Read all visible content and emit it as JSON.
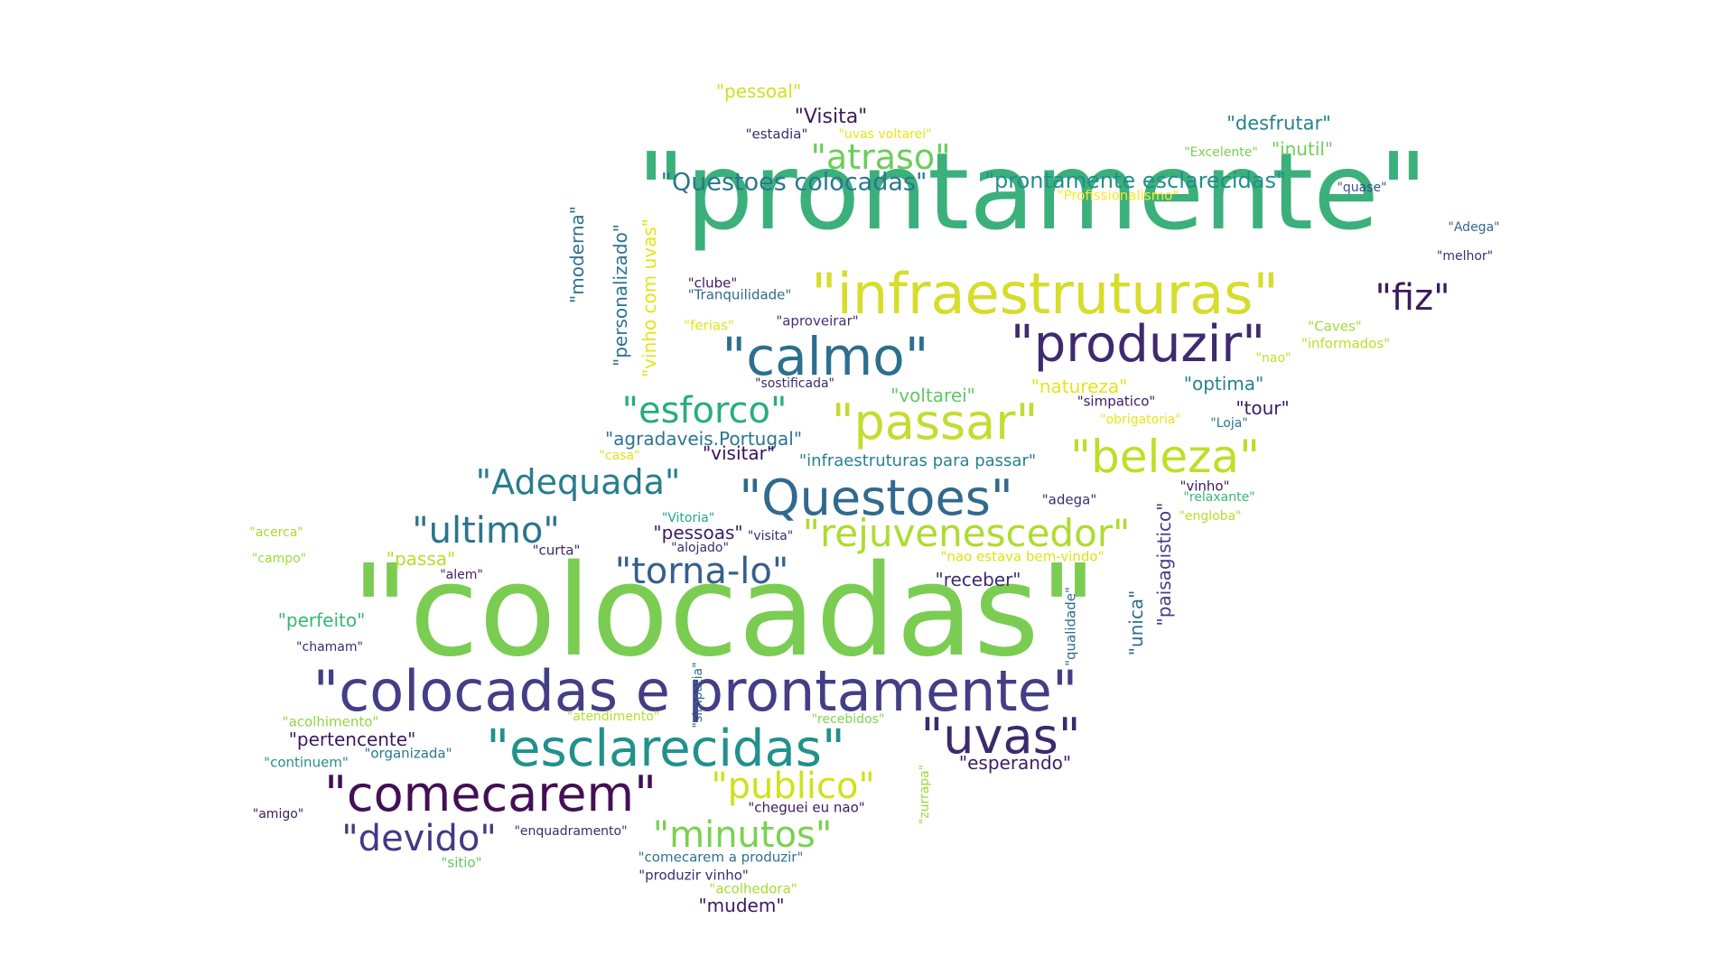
{
  "words": [
    {
      "text": "\"prontamente\"",
      "color": "#3bb07a"
    },
    {
      "text": "\"colocadas\"",
      "color": "#7acd52"
    },
    {
      "text": "\"colocadas e prontamente\"",
      "color": "#433e85"
    },
    {
      "text": "\"infraestruturas\"",
      "color": "#d6dd2b"
    },
    {
      "text": "\"produzir\"",
      "color": "#3f2a70"
    },
    {
      "text": "\"calmo\"",
      "color": "#2d6f8e"
    },
    {
      "text": "\"Questoes\"",
      "color": "#306a8e"
    },
    {
      "text": "\"passar\"",
      "color": "#c4dc30"
    },
    {
      "text": "\"beleza\"",
      "color": "#bddf26"
    },
    {
      "text": "\"esclarecidas\"",
      "color": "#21918c"
    },
    {
      "text": "\"comecarem\"",
      "color": "#440f54"
    },
    {
      "text": "\"uvas\"",
      "color": "#3b2a6d"
    },
    {
      "text": "\"rejuvenescedor\"",
      "color": "#addc30"
    },
    {
      "text": "\"torna-lo\"",
      "color": "#355f8d"
    },
    {
      "text": "\"ultimo\"",
      "color": "#2b748e"
    },
    {
      "text": "\"Adequada\"",
      "color": "#287d8e"
    },
    {
      "text": "\"esforco\"",
      "color": "#27ad81"
    },
    {
      "text": "\"atraso\"",
      "color": "#6ccd5a"
    },
    {
      "text": "\"fiz\"",
      "color": "#3a1a5c"
    },
    {
      "text": "\"publico\"",
      "color": "#d1e11c"
    },
    {
      "text": "\"minutos\"",
      "color": "#7ad151"
    },
    {
      "text": "\"devido\"",
      "color": "#443983"
    },
    {
      "text": "\"Questoes colocadas\"",
      "color": "#2a788e"
    },
    {
      "text": "\"prontamente esclarecidas\"",
      "color": "#218f8d"
    },
    {
      "text": "\"pessoal\"",
      "color": "#d0e11c"
    },
    {
      "text": "\"Visita\"",
      "color": "#3b1b5e"
    },
    {
      "text": "\"estadia\"",
      "color": "#3d2b6e"
    },
    {
      "text": "\"uvas voltarei\"",
      "color": "#e3e418"
    },
    {
      "text": "\"desfrutar\"",
      "color": "#26828e"
    },
    {
      "text": "\"Excelente\"",
      "color": "#7ad151"
    },
    {
      "text": "\"inutil\"",
      "color": "#6ece58"
    },
    {
      "text": "\"quase\"",
      "color": "#3b528b"
    },
    {
      "text": "\"Profissionalismo\"",
      "color": "#fde725"
    },
    {
      "text": "\"Adega\"",
      "color": "#31688e"
    },
    {
      "text": "\"melhor\"",
      "color": "#3e2f72"
    },
    {
      "text": "\"clube\"",
      "color": "#3d1a62"
    },
    {
      "text": "\"Tranquilidade\"",
      "color": "#2f6b8e"
    },
    {
      "text": "\"ferias\"",
      "color": "#e2e418"
    },
    {
      "text": "\"aproveirar\"",
      "color": "#472d7b"
    },
    {
      "text": "\"Caves\"",
      "color": "#a2da37"
    },
    {
      "text": "\"informados\"",
      "color": "#bddf26"
    },
    {
      "text": "\"nao\"",
      "color": "#c2df23"
    },
    {
      "text": "\"sostificada\"",
      "color": "#3c2b6f"
    },
    {
      "text": "\"natureza\"",
      "color": "#e5e419"
    },
    {
      "text": "\"optima\"",
      "color": "#25848e"
    },
    {
      "text": "\"voltarei\"",
      "color": "#5ec962"
    },
    {
      "text": "\"simpatico\"",
      "color": "#3d1c62"
    },
    {
      "text": "\"tour\"",
      "color": "#3a1c60"
    },
    {
      "text": "\"obrigatoria\"",
      "color": "#e8e419"
    },
    {
      "text": "\"Loja\"",
      "color": "#2a788e"
    },
    {
      "text": "\"agradaveis.Portugal\"",
      "color": "#2b758e"
    },
    {
      "text": "\"casa\"",
      "color": "#dde318"
    },
    {
      "text": "\"visitar\"",
      "color": "#3b0f5c"
    },
    {
      "text": "\"infraestruturas para passar\"",
      "color": "#26828e"
    },
    {
      "text": "\"adega\"",
      "color": "#3c2d6e"
    },
    {
      "text": "\"vinho\"",
      "color": "#3e1a64"
    },
    {
      "text": "\"relaxante\"",
      "color": "#35b779"
    },
    {
      "text": "\"engloba\"",
      "color": "#b5de2b"
    },
    {
      "text": "\"Vitoria\"",
      "color": "#22a884"
    },
    {
      "text": "\"pessoas\"",
      "color": "#3e1c63"
    },
    {
      "text": "\"visita\"",
      "color": "#3a2a6e"
    },
    {
      "text": "\"alojado\"",
      "color": "#3d2a6f"
    },
    {
      "text": "\"curta\"",
      "color": "#3b2a6c"
    },
    {
      "text": "\"nao estava bem-vindo\"",
      "color": "#dce318"
    },
    {
      "text": "\"receber\"",
      "color": "#3e2b70"
    },
    {
      "text": "\"acerca\"",
      "color": "#a8db34"
    },
    {
      "text": "\"campo\"",
      "color": "#9fda3a"
    },
    {
      "text": "\"passa\"",
      "color": "#b4de2c"
    },
    {
      "text": "\"alem\"",
      "color": "#3f1f64"
    },
    {
      "text": "\"perfeito\"",
      "color": "#35b779"
    },
    {
      "text": "\"chamam\"",
      "color": "#3c2b6f"
    },
    {
      "text": "\"acolhimento\"",
      "color": "#8ed645"
    },
    {
      "text": "\"atendimento\"",
      "color": "#b5de2b"
    },
    {
      "text": "\"recebidos\"",
      "color": "#7fd34e"
    },
    {
      "text": "\"pertencente\"",
      "color": "#3a1a60"
    },
    {
      "text": "\"continuem\"",
      "color": "#22908d"
    },
    {
      "text": "\"organizada\"",
      "color": "#2a788e"
    },
    {
      "text": "\"esperando\"",
      "color": "#3d1d63"
    },
    {
      "text": "\"amigo\"",
      "color": "#3b1d61"
    },
    {
      "text": "\"cheguei eu nao\"",
      "color": "#3a1a60"
    },
    {
      "text": "\"enquadramento\"",
      "color": "#3c2c6d"
    },
    {
      "text": "\"sitio\"",
      "color": "#5ec962"
    },
    {
      "text": "\"comecarem a produzir\"",
      "color": "#2c738e"
    },
    {
      "text": "\"produzir vinho\"",
      "color": "#3c2b6f"
    },
    {
      "text": "\"acolhedora\"",
      "color": "#a8db34"
    },
    {
      "text": "\"mudem\"",
      "color": "#3c1a61"
    },
    {
      "text": "\"moderna\"",
      "color": "#2c728e"
    },
    {
      "text": "\"personalizado\"",
      "color": "#2a768e"
    },
    {
      "text": "\"vinho com uvas\"",
      "color": "#e3e418"
    },
    {
      "text": "\"paisagistico\"",
      "color": "#433e85"
    },
    {
      "text": "\"unica\"",
      "color": "#2b6f8e"
    },
    {
      "text": "\"qualidade\"",
      "color": "#2f6b8e"
    },
    {
      "text": "\"simpatia\"",
      "color": "#306a8e"
    },
    {
      "text": "\"zurrapa\"",
      "color": "#9cd93b"
    }
  ]
}
